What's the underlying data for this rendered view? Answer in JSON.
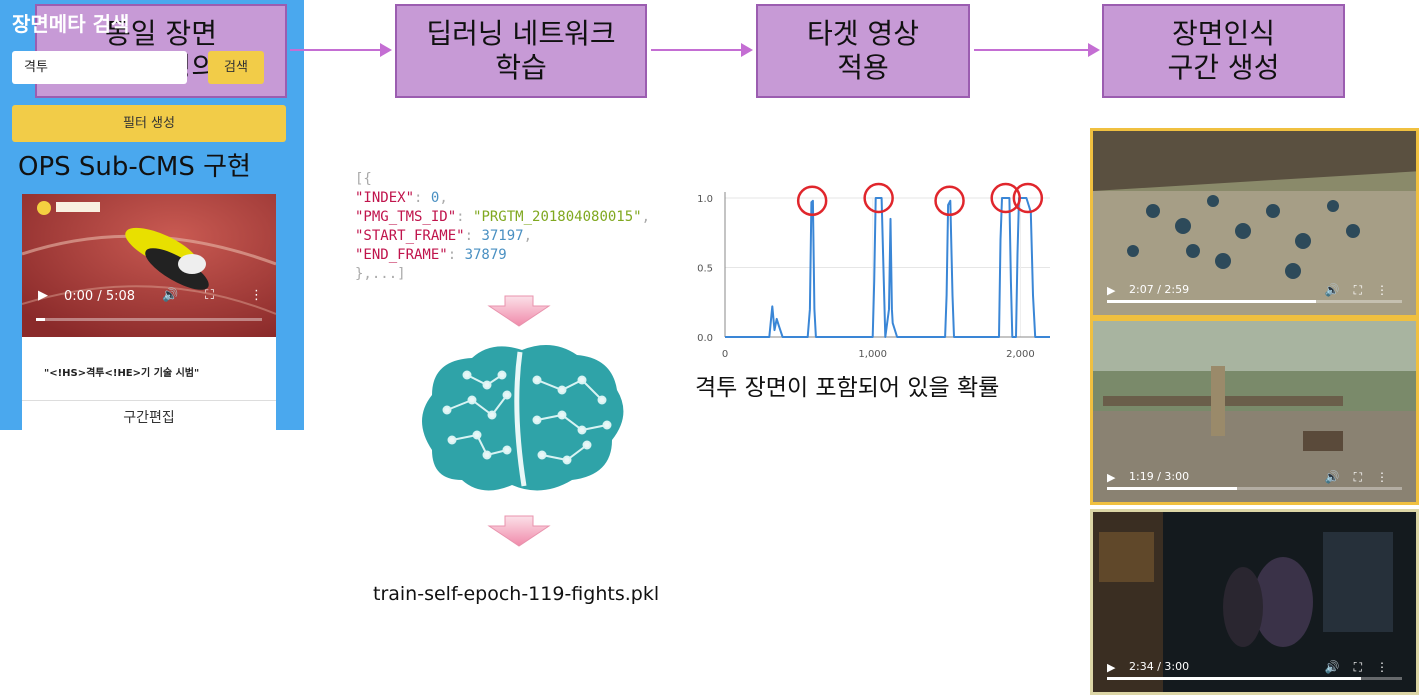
{
  "pipeline": {
    "steps": [
      {
        "label": "동일 장면\n구간 정의"
      },
      {
        "label": "딥러닝 네트워크\n학습"
      },
      {
        "label": "타겟 영상\n적용"
      },
      {
        "label": "장면인식\n구간 생성"
      }
    ]
  },
  "cms": {
    "section_title": "OPS Sub-CMS 구현",
    "header": "장면메타 검색",
    "search_value": "격투",
    "search_button": "검색",
    "filter_button": "필터 생성",
    "video": {
      "time": "0:00 / 5:08",
      "progress": 0.0,
      "caption": "\"<!HS>격투<!HE>기 기술 시범\"",
      "edit_button": "구간편집"
    }
  },
  "json_sample": {
    "open": "[{",
    "lines": [
      {
        "key": "\"INDEX\"",
        "value": "0",
        "type": "number"
      },
      {
        "key": "\"PMG_TMS_ID\"",
        "value": "\"PRGTM_201804080015\"",
        "type": "string"
      },
      {
        "key": "\"START_FRAME\"",
        "value": "37197",
        "type": "number"
      },
      {
        "key": "\"END_FRAME\"",
        "value": "37879",
        "type": "number"
      }
    ],
    "close": "},...]"
  },
  "model_file": "train-self-epoch-119-fights.pkl",
  "chart_caption": "격투 장면이 포함되어 있을 확률",
  "chart_data": {
    "type": "line",
    "title": "",
    "xlabel": "",
    "ylabel": "",
    "xlim": [
      0,
      2200
    ],
    "ylim": [
      0,
      1.0
    ],
    "x_ticks": [
      "0",
      "1,000",
      "2,000"
    ],
    "y_ticks": [
      "0.0",
      "0.5",
      "1.0"
    ],
    "grid": true,
    "color": "#3a86d6",
    "highlight_color": "#e0262c",
    "series": [
      {
        "values": [
          [
            0,
            0.0
          ],
          [
            300,
            0.0
          ],
          [
            320,
            0.22
          ],
          [
            335,
            0.05
          ],
          [
            350,
            0.13
          ],
          [
            365,
            0.08
          ],
          [
            390,
            0.0
          ],
          [
            560,
            0.0
          ],
          [
            575,
            0.2
          ],
          [
            585,
            0.97
          ],
          [
            595,
            0.98
          ],
          [
            605,
            0.2
          ],
          [
            615,
            0.0
          ],
          [
            1000,
            0.0
          ],
          [
            1010,
            0.4
          ],
          [
            1020,
            1.0
          ],
          [
            1060,
            1.0
          ],
          [
            1075,
            0.4
          ],
          [
            1085,
            0.0
          ],
          [
            1110,
            0.2
          ],
          [
            1120,
            0.85
          ],
          [
            1130,
            0.2
          ],
          [
            1135,
            0.1
          ],
          [
            1165,
            0.0
          ],
          [
            1490,
            0.0
          ],
          [
            1500,
            0.3
          ],
          [
            1510,
            0.95
          ],
          [
            1525,
            0.98
          ],
          [
            1540,
            0.3
          ],
          [
            1550,
            0.0
          ],
          [
            1855,
            0.0
          ],
          [
            1865,
            0.7
          ],
          [
            1875,
            1.0
          ],
          [
            1925,
            1.0
          ],
          [
            1935,
            0.4
          ],
          [
            1945,
            0.0
          ],
          [
            1970,
            0.0
          ],
          [
            1980,
            0.6
          ],
          [
            1990,
            1.0
          ],
          [
            2040,
            1.0
          ],
          [
            2055,
            0.95
          ],
          [
            2070,
            0.9
          ],
          [
            2085,
            0.3
          ],
          [
            2100,
            0.0
          ],
          [
            2200,
            0.0
          ]
        ]
      }
    ],
    "peaks": [
      [
        590,
        0.98
      ],
      [
        1040,
        1.0
      ],
      [
        1520,
        0.98
      ],
      [
        1900,
        1.0
      ],
      [
        2050,
        1.0
      ]
    ]
  },
  "results": [
    {
      "time": "2:07 / 2:59",
      "progress": 0.71
    },
    {
      "time": "1:19 / 3:00",
      "progress": 0.44
    },
    {
      "time": "2:34 / 3:00",
      "progress": 0.86
    }
  ]
}
